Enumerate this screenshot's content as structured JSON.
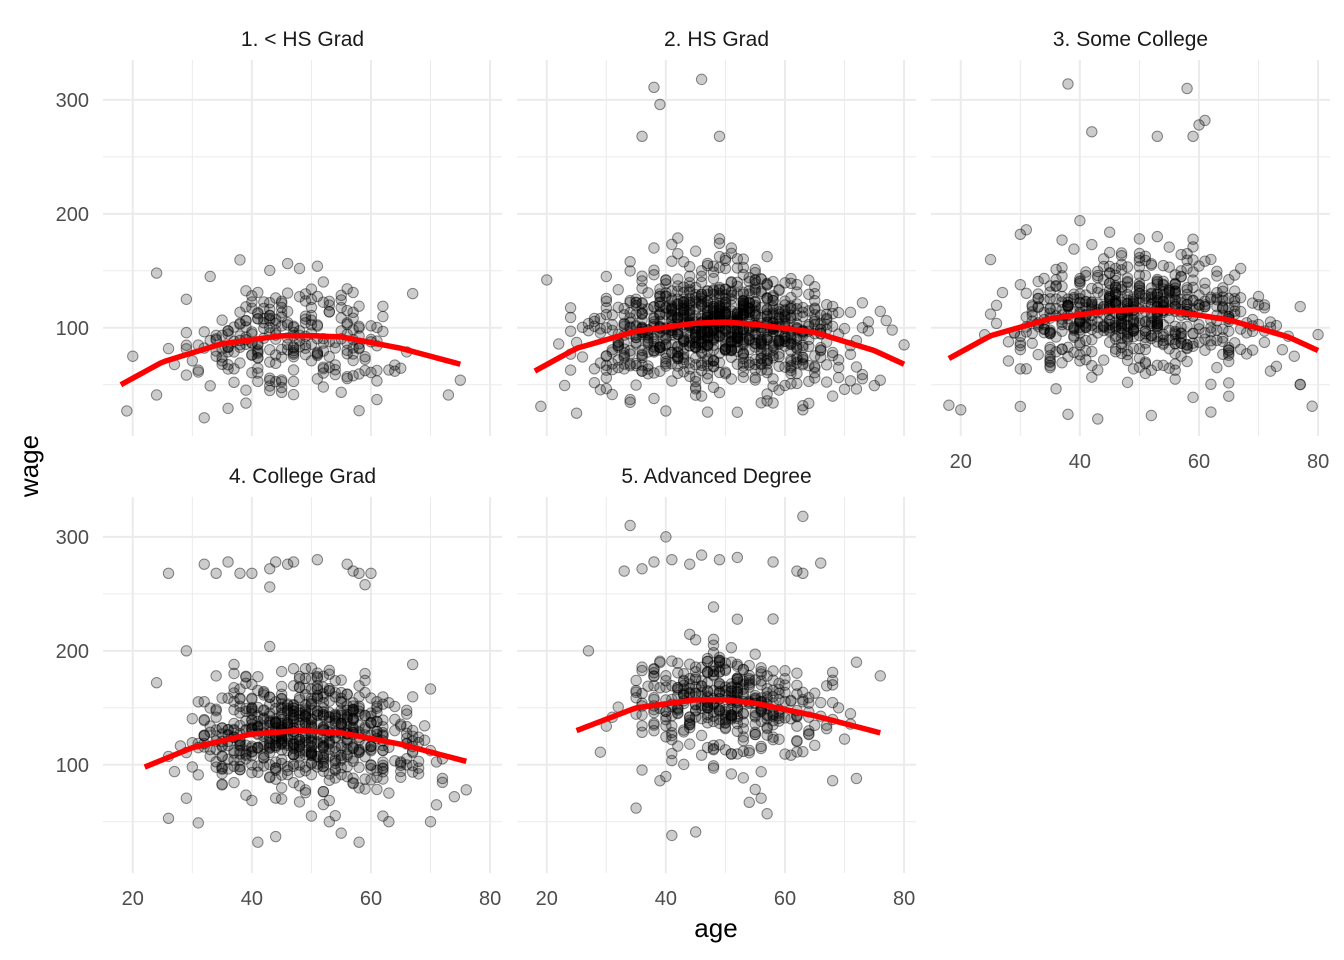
{
  "chart_data": {
    "type": "scatter",
    "xlabel": "age",
    "ylabel": "wage",
    "xlim": [
      15,
      82
    ],
    "ylim": [
      5,
      335
    ],
    "x_ticks": [
      20,
      40,
      60,
      80
    ],
    "y_ticks": [
      100,
      200,
      300
    ],
    "grid": true,
    "colors": {
      "points": "#000000",
      "fit": "#ff0000",
      "grid": "#ebebeb",
      "text": "#4d4d4d"
    },
    "panels": [
      {
        "title": "1. < HS Grad",
        "n_points": 268,
        "fit_curve": {
          "x": [
            18,
            25,
            35,
            45,
            50,
            55,
            65,
            75
          ],
          "y": [
            50,
            70,
            86,
            93,
            93,
            92,
            82,
            68
          ]
        },
        "highlighted_points": [
          [
            24,
            148
          ],
          [
            48,
            152
          ],
          [
            41,
            131
          ],
          [
            33,
            145
          ],
          [
            29,
            125
          ],
          [
            40,
            128
          ],
          [
            43,
            122
          ],
          [
            57,
            131
          ],
          [
            67,
            130
          ],
          [
            19,
            27
          ],
          [
            24,
            41
          ],
          [
            32,
            21
          ],
          [
            43,
            45
          ],
          [
            73,
            41
          ],
          [
            75,
            54
          ],
          [
            63,
            63
          ],
          [
            52,
            48
          ],
          [
            20,
            75
          ]
        ]
      },
      {
        "title": "2. HS Grad",
        "n_points": 971,
        "fit_curve": {
          "x": [
            18,
            25,
            35,
            45,
            50,
            55,
            65,
            75,
            80
          ],
          "y": [
            62,
            82,
            97,
            104,
            105,
            103,
            96,
            80,
            68
          ]
        },
        "highlighted_points": [
          [
            46,
            318
          ],
          [
            38,
            311
          ],
          [
            39,
            296
          ],
          [
            36,
            268
          ],
          [
            49,
            268
          ],
          [
            20,
            142
          ],
          [
            38,
            170
          ],
          [
            42,
            165
          ],
          [
            49,
            178
          ],
          [
            51,
            170
          ],
          [
            34,
            158
          ],
          [
            19,
            31
          ],
          [
            25,
            25
          ],
          [
            40,
            27
          ],
          [
            47,
            26
          ],
          [
            58,
            34
          ],
          [
            68,
            40
          ],
          [
            80,
            85
          ],
          [
            78,
            98
          ]
        ]
      },
      {
        "title": "3. Some College",
        "n_points": 650,
        "fit_curve": {
          "x": [
            18,
            25,
            35,
            45,
            50,
            55,
            65,
            75,
            80
          ],
          "y": [
            73,
            93,
            108,
            115,
            116,
            115,
            107,
            92,
            80
          ]
        },
        "highlighted_points": [
          [
            38,
            314
          ],
          [
            58,
            310
          ],
          [
            42,
            272
          ],
          [
            53,
            268
          ],
          [
            59,
            268
          ],
          [
            60,
            278
          ],
          [
            61,
            282
          ],
          [
            30,
            182
          ],
          [
            31,
            186
          ],
          [
            40,
            194
          ],
          [
            37,
            177
          ],
          [
            50,
            178
          ],
          [
            53,
            180
          ],
          [
            58,
            152
          ],
          [
            62,
            160
          ],
          [
            67,
            152
          ],
          [
            18,
            32
          ],
          [
            20,
            28
          ],
          [
            38,
            24
          ],
          [
            43,
            20
          ],
          [
            52,
            23
          ],
          [
            62,
            26
          ],
          [
            63,
            65
          ],
          [
            76,
            75
          ],
          [
            80,
            94
          ],
          [
            71,
            120
          ]
        ]
      },
      {
        "title": "4. College Grad",
        "n_points": 685,
        "fit_curve": {
          "x": [
            22,
            30,
            40,
            48,
            55,
            65,
            76
          ],
          "y": [
            98,
            115,
            127,
            130,
            128,
            118,
            103
          ]
        },
        "highlighted_points": [
          [
            26,
            268
          ],
          [
            32,
            276
          ],
          [
            34,
            268
          ],
          [
            36,
            278
          ],
          [
            38,
            268
          ],
          [
            40,
            268
          ],
          [
            43,
            272
          ],
          [
            44,
            278
          ],
          [
            46,
            276
          ],
          [
            47,
            278
          ],
          [
            51,
            280
          ],
          [
            56,
            276
          ],
          [
            57,
            270
          ],
          [
            58,
            268
          ],
          [
            59,
            258
          ],
          [
            60,
            268
          ],
          [
            43,
            256
          ],
          [
            31,
            49
          ],
          [
            41,
            32
          ],
          [
            44,
            37
          ],
          [
            50,
            55
          ],
          [
            53,
            50
          ],
          [
            55,
            40
          ],
          [
            58,
            32
          ],
          [
            62,
            55
          ],
          [
            63,
            50
          ],
          [
            70,
            50
          ],
          [
            72,
            88
          ],
          [
            74,
            72
          ],
          [
            76,
            78
          ],
          [
            24,
            172
          ],
          [
            29,
            200
          ]
        ]
      },
      {
        "title": "5. Advanced Degree",
        "n_points": 426,
        "fit_curve": {
          "x": [
            25,
            35,
            45,
            50,
            55,
            65,
            76
          ],
          "y": [
            130,
            150,
            157,
            157,
            154,
            143,
            128
          ]
        },
        "highlighted_points": [
          [
            34,
            310
          ],
          [
            40,
            300
          ],
          [
            46,
            284
          ],
          [
            63,
            318
          ],
          [
            33,
            270
          ],
          [
            36,
            272
          ],
          [
            38,
            278
          ],
          [
            41,
            280
          ],
          [
            44,
            276
          ],
          [
            49,
            280
          ],
          [
            52,
            282
          ],
          [
            58,
            278
          ],
          [
            62,
            270
          ],
          [
            63,
            268
          ],
          [
            66,
            277
          ],
          [
            27,
            200
          ],
          [
            58,
            228
          ],
          [
            41,
            38
          ],
          [
            45,
            41
          ],
          [
            54,
            67
          ],
          [
            57,
            57
          ],
          [
            35,
            62
          ],
          [
            69,
            150
          ],
          [
            72,
            190
          ],
          [
            76,
            178
          ],
          [
            72,
            88
          ]
        ]
      }
    ]
  }
}
